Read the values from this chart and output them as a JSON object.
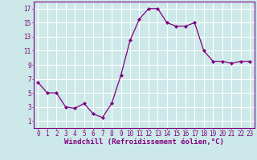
{
  "x": [
    0,
    1,
    2,
    3,
    4,
    5,
    6,
    7,
    8,
    9,
    10,
    11,
    12,
    13,
    14,
    15,
    16,
    17,
    18,
    19,
    20,
    21,
    22,
    23
  ],
  "y": [
    6.5,
    5.0,
    5.0,
    3.0,
    2.8,
    3.5,
    2.0,
    1.5,
    3.5,
    7.5,
    12.5,
    15.5,
    17.0,
    17.0,
    15.0,
    14.5,
    14.5,
    15.0,
    11.0,
    9.5,
    9.5,
    9.2,
    9.5,
    9.5
  ],
  "line_color": "#800080",
  "marker": "D",
  "marker_size": 2,
  "bg_color": "#cce8e8",
  "grid_color": "#ffffff",
  "xlabel": "Windchill (Refroidissement éolien,°C)",
  "xlabel_color": "#800080",
  "xlabel_fontsize": 6.5,
  "tick_color": "#800080",
  "tick_fontsize": 5.5,
  "ylim": [
    0,
    18
  ],
  "yticks": [
    1,
    3,
    5,
    7,
    9,
    11,
    13,
    15,
    17
  ],
  "xlim": [
    -0.5,
    23.5
  ],
  "xticks": [
    0,
    1,
    2,
    3,
    4,
    5,
    6,
    7,
    8,
    9,
    10,
    11,
    12,
    13,
    14,
    15,
    16,
    17,
    18,
    19,
    20,
    21,
    22,
    23
  ]
}
